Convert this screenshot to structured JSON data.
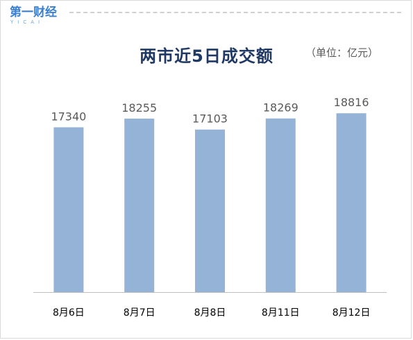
{
  "header": {
    "logo_text": "第一财经",
    "logo_sub": "YICAI",
    "brand_color": "#3a7fd0"
  },
  "chart_data": {
    "type": "bar",
    "title": "两市近5日成交额",
    "unit": "（单位：亿元）",
    "categories": [
      "8月6日",
      "8月7日",
      "8月8日",
      "8月11日",
      "8月12日"
    ],
    "values": [
      17340,
      18255,
      17103,
      18269,
      18816
    ],
    "xlabel": "",
    "ylabel": "",
    "ylim": [
      0,
      20000
    ],
    "grid": false,
    "bar_color": "#95b3d7"
  }
}
